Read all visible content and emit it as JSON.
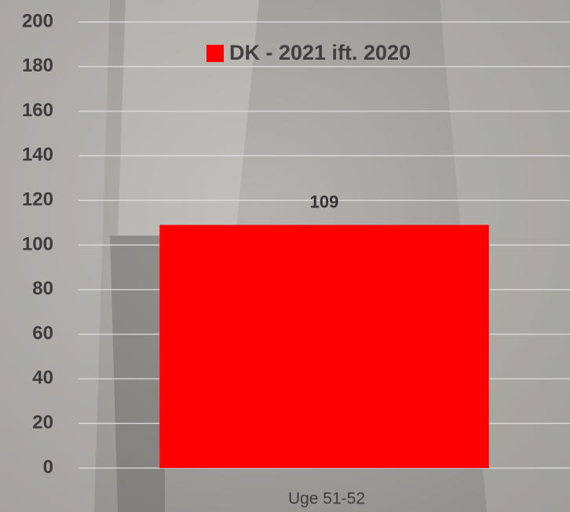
{
  "chart_data": {
    "type": "bar",
    "categories": [
      "Uge 51-52"
    ],
    "series": [
      {
        "name": "DK - 2021 ift. 2020",
        "color": "#ff0000",
        "values": [
          109
        ]
      }
    ],
    "ylim": [
      0,
      200
    ],
    "yticks": [
      0,
      20,
      40,
      60,
      80,
      100,
      120,
      140,
      160,
      180,
      200
    ],
    "grid": true,
    "legend": "top"
  }
}
